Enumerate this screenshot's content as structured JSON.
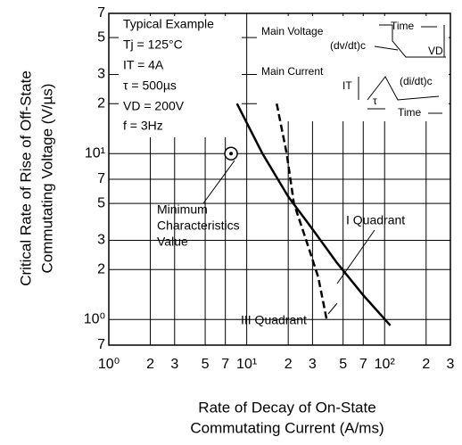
{
  "chart_data": {
    "type": "line",
    "xlabel": [
      "Rate of Decay of On-State",
      "Commutating Current  (A/ms)"
    ],
    "ylabel": [
      "Critical Rate of Rise of Off-State",
      "Commutating Voltage  (V/µs)"
    ],
    "log_x": true,
    "log_y": true,
    "grid": true,
    "xlim": [
      1,
      300
    ],
    "ylim": [
      0.7,
      70
    ],
    "xticks": [
      {
        "value": 1,
        "label": "10⁰"
      },
      2,
      3,
      5,
      7,
      {
        "value": 10,
        "label": "10¹"
      },
      {
        "value": 20,
        "label": "2"
      },
      {
        "value": 30,
        "label": "3"
      },
      {
        "value": 50,
        "label": "5"
      },
      {
        "value": 70,
        "label": "7"
      },
      {
        "value": 100,
        "label": "10²"
      },
      {
        "value": 200,
        "label": "2"
      },
      {
        "value": 300,
        "label": "3"
      }
    ],
    "yticks": [
      {
        "value": 0.7,
        "label": "7"
      },
      {
        "value": 1,
        "label": "10⁰"
      },
      2,
      3,
      5,
      7,
      {
        "value": 10,
        "label": "10¹"
      },
      {
        "value": 20,
        "label": "2"
      },
      {
        "value": 30,
        "label": "3"
      },
      {
        "value": 50,
        "label": "5"
      },
      {
        "value": 70,
        "label": "7"
      }
    ],
    "series": [
      {
        "name": "I Quadrant",
        "color": "#000000",
        "dash": false,
        "x": [
          8.5,
          13,
          20,
          30,
          45,
          70,
          110
        ],
        "values": [
          20,
          10,
          5.5,
          3.5,
          2.2,
          1.4,
          0.92
        ]
      },
      {
        "name": "III Quadrant",
        "color": "#000000",
        "dash": true,
        "x": [
          16.5,
          19.5,
          22,
          27,
          33,
          38
        ],
        "values": [
          20,
          10,
          5,
          3,
          1.8,
          1.0
        ]
      }
    ],
    "marker": {
      "x": 7.7,
      "y": 10,
      "label": [
        "Minimum",
        "Characteristics",
        "Value"
      ]
    },
    "conditions": [
      "Typical Example",
      "Tj = 125°C",
      "IT = 4A",
      "τ = 500µs",
      "VD = 200V",
      "f = 3Hz"
    ],
    "inset": {
      "main_voltage": "Main Voltage",
      "dvdt": "(dv/dt)c",
      "time_1": "Time",
      "vd": "VD",
      "main_current": "Main Current",
      "it": "IT",
      "didt": "(di/dt)c",
      "tau": "τ",
      "time_2": "Time"
    }
  }
}
